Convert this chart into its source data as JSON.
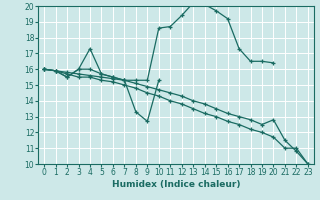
{
  "xlabel": "Humidex (Indice chaleur)",
  "ylabel": "",
  "xlim": [
    -0.5,
    23.5
  ],
  "ylim": [
    10,
    20
  ],
  "xticks": [
    0,
    1,
    2,
    3,
    4,
    5,
    6,
    7,
    8,
    9,
    10,
    11,
    12,
    13,
    14,
    15,
    16,
    17,
    18,
    19,
    20,
    21,
    22,
    23
  ],
  "yticks": [
    10,
    11,
    12,
    13,
    14,
    15,
    16,
    17,
    18,
    19,
    20
  ],
  "bg_color": "#cde8e8",
  "line_color": "#1a6b62",
  "grid_color": "#ffffff",
  "lines": [
    {
      "x": [
        0,
        1,
        2,
        3,
        4,
        5,
        6,
        7,
        8,
        9,
        10,
        11,
        12,
        13,
        14,
        15,
        16,
        17,
        18,
        19,
        20
      ],
      "y": [
        16,
        15.9,
        15.5,
        16.0,
        17.3,
        15.7,
        15.5,
        15.3,
        15.3,
        15.3,
        18.6,
        18.7,
        19.4,
        20.2,
        20.1,
        19.7,
        19.2,
        17.3,
        16.5,
        16.5,
        16.4
      ]
    },
    {
      "x": [
        0,
        1,
        2,
        3,
        4,
        5,
        6,
        7,
        8,
        9,
        10
      ],
      "y": [
        16,
        15.9,
        15.5,
        16.0,
        16.0,
        15.7,
        15.5,
        15.3,
        13.3,
        12.7,
        15.3
      ]
    },
    {
      "x": [
        0,
        1,
        2,
        3,
        4,
        5,
        6,
        7,
        8,
        9,
        10,
        11,
        12,
        13,
        14,
        15,
        16,
        17,
        18,
        19,
        20,
        21,
        22,
        23
      ],
      "y": [
        16,
        15.9,
        15.7,
        15.5,
        15.5,
        15.3,
        15.2,
        15.0,
        14.8,
        14.5,
        14.3,
        14.0,
        13.8,
        13.5,
        13.2,
        13.0,
        12.7,
        12.5,
        12.2,
        12.0,
        11.7,
        11.0,
        11.0,
        10.0
      ]
    },
    {
      "x": [
        0,
        1,
        2,
        3,
        4,
        5,
        6,
        7,
        8,
        9,
        10,
        11,
        12,
        13,
        14,
        15,
        16,
        17,
        18,
        19,
        20,
        21,
        22,
        23
      ],
      "y": [
        16,
        15.9,
        15.8,
        15.7,
        15.6,
        15.5,
        15.4,
        15.3,
        15.1,
        14.9,
        14.7,
        14.5,
        14.3,
        14.0,
        13.8,
        13.5,
        13.2,
        13.0,
        12.8,
        12.5,
        12.8,
        11.5,
        10.8,
        10.0
      ]
    }
  ]
}
